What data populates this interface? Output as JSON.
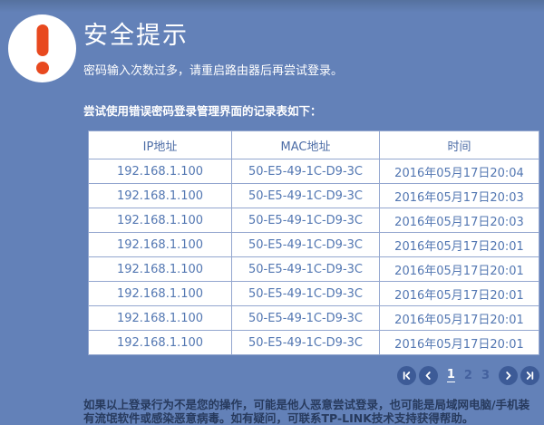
{
  "header": {
    "title": "安全提示",
    "subtitle": "密码输入次数过多，请重启路由器后再尝试登录。"
  },
  "alert_icon": "exclamation-mark",
  "table": {
    "label": "尝试使用错误密码登录管理界面的记录表如下：",
    "columns": [
      "IP地址",
      "MAC地址",
      "时间"
    ],
    "rows": [
      [
        "192.168.1.100",
        "50-E5-49-1C-D9-3C",
        "2016年05月17日20:04"
      ],
      [
        "192.168.1.100",
        "50-E5-49-1C-D9-3C",
        "2016年05月17日20:03"
      ],
      [
        "192.168.1.100",
        "50-E5-49-1C-D9-3C",
        "2016年05月17日20:03"
      ],
      [
        "192.168.1.100",
        "50-E5-49-1C-D9-3C",
        "2016年05月17日20:01"
      ],
      [
        "192.168.1.100",
        "50-E5-49-1C-D9-3C",
        "2016年05月17日20:01"
      ],
      [
        "192.168.1.100",
        "50-E5-49-1C-D9-3C",
        "2016年05月17日20:01"
      ],
      [
        "192.168.1.100",
        "50-E5-49-1C-D9-3C",
        "2016年05月17日20:01"
      ],
      [
        "192.168.1.100",
        "50-E5-49-1C-D9-3C",
        "2016年05月17日20:01"
      ]
    ]
  },
  "pagination": {
    "pages": [
      "1",
      "2",
      "3"
    ],
    "current": "1",
    "buttons": [
      "first",
      "previous",
      "next",
      "last"
    ]
  },
  "footer": {
    "note": "如果以上登录行为不是您的操作，可能是他人恶意尝试登录，也可能是局域网电脑/手机装有流氓软件或感染恶意病毒。如有疑问，可联系TP-LINK技术支持获得帮助。"
  },
  "colors": {
    "background": "#6381b8",
    "alert": "#e8491f",
    "pagination_button": "#3d5b97",
    "table_text": "#5377b2",
    "table_border": "#93a6cf",
    "footer_text": "#273a5d"
  }
}
